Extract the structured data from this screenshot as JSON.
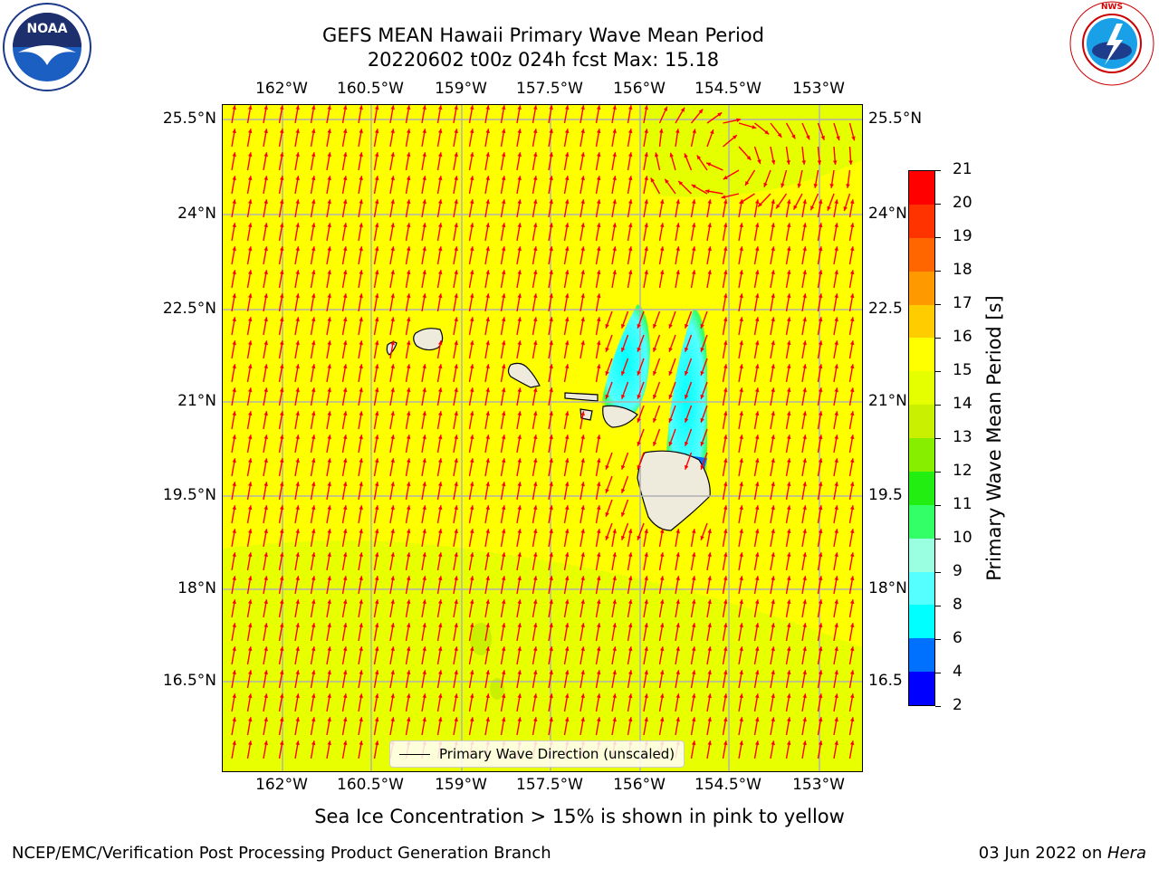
{
  "title_line1": "GEFS MEAN Hawaii Primary Wave Mean Period",
  "title_line2": "20220602 t00z 024h fcst   Max: 15.18",
  "lon_labels": [
    "162°W",
    "160.5°W",
    "159°W",
    "157.5°W",
    "156°W",
    "154.5°W",
    "153°W"
  ],
  "lat_labels": [
    "25.5°N",
    "24°N",
    "22.5°N",
    "21°N",
    "19.5°N",
    "18°N",
    "16.5°N"
  ],
  "lat_labels_right": [
    "25.5°N",
    "24°N",
    "22.5",
    "21°N",
    "19.5",
    "18°N",
    "16.5"
  ],
  "colorbar": {
    "label": "Primary Wave Mean Period [s]",
    "ticks": [
      "2",
      "4",
      "6",
      "8",
      "9",
      "10",
      "11",
      "12",
      "13",
      "14",
      "15",
      "16",
      "17",
      "18",
      "19",
      "20",
      "21"
    ],
    "colors": [
      "#0000ff",
      "#0070ff",
      "#00ffff",
      "#55ffff",
      "#99ffe0",
      "#33ff66",
      "#22ee11",
      "#88ee00",
      "#c8f000",
      "#e6ff00",
      "#ffff00",
      "#ffcc00",
      "#ff9900",
      "#ff6600",
      "#ff3300",
      "#ff0000"
    ]
  },
  "legend_label": "Primary Wave Direction (unscaled)",
  "sea_ice_note": "Sea Ice Concentration > 15% is shown in pink to yellow",
  "footer_left": "NCEP/EMC/Verification Post Processing Product Generation Branch",
  "footer_date": "03 Jun 2022 on ",
  "footer_host": "Hera",
  "logos": {
    "left": "noaa-logo",
    "right": "nws-logo"
  },
  "colors": {
    "ocean": "#ffff00",
    "arrow": "#ff0000",
    "land": "#efebdc",
    "grid": "#b0b0b0"
  }
}
